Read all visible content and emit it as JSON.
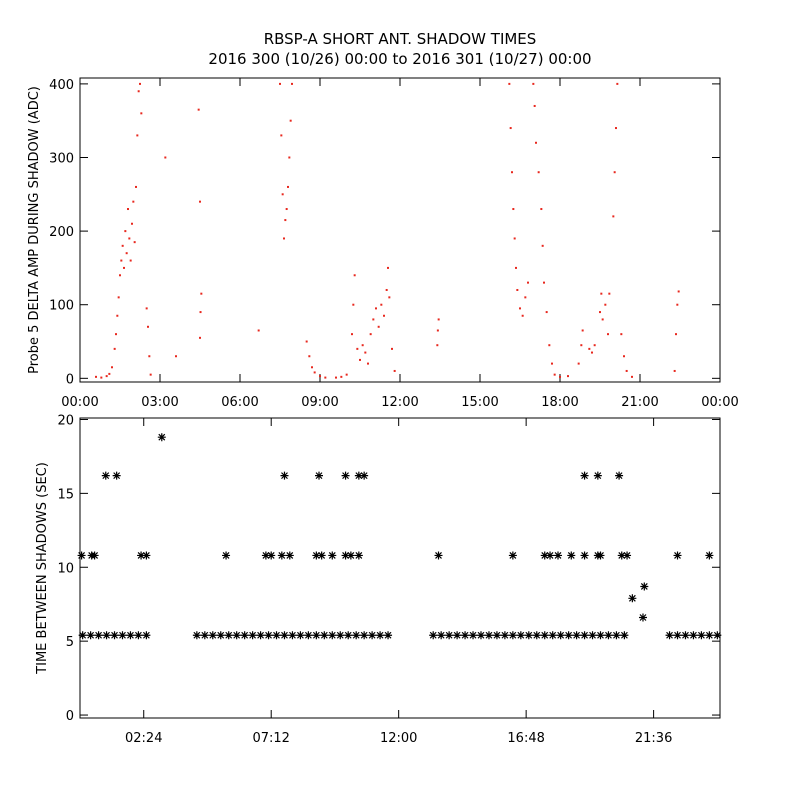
{
  "chart_data": [
    {
      "type": "scatter",
      "title": "RBSP-A SHORT ANT. SHADOW TIMES",
      "subtitle": "2016 300 (10/26) 00:00 to 2016 301 (10/27) 00:00",
      "y_label": "Probe 5 DELTA AMP DURING SHADOW (ADC)",
      "marker": "dot",
      "xlim": [
        0,
        24
      ],
      "ylim": [
        -5,
        408
      ],
      "xticks": [
        {
          "value": 0,
          "label": "00:00"
        },
        {
          "value": 3,
          "label": "03:00"
        },
        {
          "value": 6,
          "label": "06:00"
        },
        {
          "value": 9,
          "label": "09:00"
        },
        {
          "value": 12,
          "label": "12:00"
        },
        {
          "value": 15,
          "label": "15:00"
        },
        {
          "value": 18,
          "label": "18:00"
        },
        {
          "value": 21,
          "label": "21:00"
        },
        {
          "value": 24,
          "label": "00:00"
        }
      ],
      "yticks": [
        0,
        100,
        200,
        300,
        400
      ],
      "series": [
        {
          "color": "#e8281e",
          "x": [
            0.6,
            0.8,
            1.0,
            1.1,
            1.2,
            1.3,
            1.35,
            1.4,
            1.45,
            1.5,
            1.55,
            1.6,
            1.65,
            1.7,
            1.75,
            1.8,
            1.85,
            1.9,
            1.95,
            2.0,
            2.05,
            2.1,
            2.15,
            2.2,
            2.25,
            2.3,
            2.5,
            2.55,
            2.6,
            2.65,
            3.2,
            3.6,
            4.5,
            4.52,
            4.55,
            4.5,
            4.45,
            6.7,
            7.5,
            7.55,
            7.6,
            7.65,
            7.7,
            7.75,
            7.8,
            7.85,
            7.9,
            7.95,
            8.5,
            8.6,
            8.7,
            8.8,
            9.0,
            9.2,
            9.6,
            9.8,
            10.0,
            10.2,
            10.25,
            10.3,
            10.4,
            10.5,
            10.6,
            10.7,
            10.8,
            10.9,
            11.0,
            11.1,
            11.2,
            11.3,
            11.4,
            11.5,
            11.55,
            11.6,
            11.7,
            11.8,
            13.4,
            13.42,
            13.45,
            16.1,
            16.15,
            16.2,
            16.25,
            16.3,
            16.35,
            16.4,
            16.5,
            16.6,
            16.7,
            16.8,
            17.0,
            17.05,
            17.1,
            17.2,
            17.3,
            17.35,
            17.4,
            17.5,
            17.6,
            17.7,
            17.8,
            18.0,
            18.3,
            18.7,
            18.8,
            18.85,
            19.1,
            19.2,
            19.3,
            19.5,
            19.55,
            19.6,
            19.7,
            19.8,
            19.85,
            20.0,
            20.05,
            20.1,
            20.15,
            20.3,
            20.4,
            20.5,
            20.7,
            22.3,
            22.35,
            22.4,
            22.45
          ],
          "values": [
            2,
            1,
            3,
            6,
            15,
            40,
            60,
            85,
            110,
            140,
            160,
            180,
            150,
            200,
            170,
            230,
            190,
            160,
            210,
            240,
            185,
            260,
            330,
            390,
            400,
            360,
            95,
            70,
            30,
            5,
            300,
            30,
            55,
            90,
            115,
            240,
            365,
            65,
            400,
            330,
            250,
            190,
            215,
            230,
            260,
            300,
            350,
            400,
            50,
            30,
            15,
            8,
            3,
            1,
            1,
            2,
            5,
            60,
            100,
            140,
            40,
            25,
            45,
            35,
            20,
            60,
            80,
            95,
            70,
            100,
            85,
            120,
            150,
            110,
            40,
            10,
            45,
            65,
            80,
            400,
            340,
            280,
            230,
            190,
            150,
            120,
            95,
            85,
            110,
            130,
            400,
            370,
            320,
            280,
            230,
            180,
            130,
            90,
            45,
            20,
            5,
            2,
            3,
            20,
            45,
            65,
            40,
            35,
            45,
            90,
            115,
            80,
            100,
            60,
            115,
            220,
            280,
            340,
            400,
            60,
            30,
            10,
            2,
            10,
            60,
            100,
            118
          ]
        }
      ]
    },
    {
      "type": "scatter",
      "y_label": "TIME BETWEEN SHADOWS (SEC)",
      "marker": "asterisk",
      "xlim": [
        0,
        24.1
      ],
      "ylim": [
        -0.2,
        20.1
      ],
      "xticks": [
        {
          "value": 2.4,
          "label": "02:24"
        },
        {
          "value": 7.2,
          "label": "07:12"
        },
        {
          "value": 12,
          "label": "12:00"
        },
        {
          "value": 16.8,
          "label": "16:48"
        },
        {
          "value": 21.6,
          "label": "21:36"
        }
      ],
      "yticks": [
        0,
        5,
        10,
        15,
        20
      ],
      "series": [
        {
          "color": "#000000",
          "x": [
            0.1,
            0.4,
            0.7,
            1.0,
            1.3,
            1.6,
            1.9,
            2.2,
            2.5,
            4.4,
            4.7,
            5.0,
            5.3,
            5.6,
            5.9,
            6.2,
            6.5,
            6.8,
            7.1,
            7.4,
            7.7,
            8.0,
            8.3,
            8.6,
            8.9,
            9.2,
            9.5,
            9.8,
            10.1,
            10.4,
            10.7,
            11.0,
            11.3,
            11.6,
            13.3,
            13.6,
            13.9,
            14.2,
            14.5,
            14.8,
            15.1,
            15.4,
            15.7,
            16.0,
            16.3,
            16.6,
            16.9,
            17.2,
            17.5,
            17.8,
            18.1,
            18.4,
            18.7,
            19.0,
            19.3,
            19.6,
            19.9,
            20.2,
            20.5,
            22.2,
            22.5,
            22.8,
            23.1,
            23.4,
            23.7,
            24.0,
            0.06,
            0.44,
            0.55,
            2.3,
            2.5,
            5.5,
            7.0,
            7.2,
            7.6,
            7.9,
            8.9,
            9.1,
            9.5,
            10.0,
            10.2,
            10.5,
            13.5,
            16.3,
            17.5,
            17.7,
            18.0,
            18.5,
            19.0,
            19.5,
            19.6,
            20.4,
            20.6,
            22.5,
            23.7,
            0.97,
            1.38,
            7.7,
            9.0,
            10.0,
            10.5,
            10.7,
            19.0,
            19.5,
            20.3,
            3.08,
            20.8,
            21.25,
            21.2
          ],
          "values": [
            5.4,
            5.4,
            5.4,
            5.4,
            5.4,
            5.4,
            5.4,
            5.4,
            5.4,
            5.4,
            5.4,
            5.4,
            5.4,
            5.4,
            5.4,
            5.4,
            5.4,
            5.4,
            5.4,
            5.4,
            5.4,
            5.4,
            5.4,
            5.4,
            5.4,
            5.4,
            5.4,
            5.4,
            5.4,
            5.4,
            5.4,
            5.4,
            5.4,
            5.4,
            5.4,
            5.4,
            5.4,
            5.4,
            5.4,
            5.4,
            5.4,
            5.4,
            5.4,
            5.4,
            5.4,
            5.4,
            5.4,
            5.4,
            5.4,
            5.4,
            5.4,
            5.4,
            5.4,
            5.4,
            5.4,
            5.4,
            5.4,
            5.4,
            5.4,
            5.4,
            5.4,
            5.4,
            5.4,
            5.4,
            5.4,
            5.4,
            10.8,
            10.8,
            10.8,
            10.8,
            10.8,
            10.8,
            10.8,
            10.8,
            10.8,
            10.8,
            10.8,
            10.8,
            10.8,
            10.8,
            10.8,
            10.8,
            10.8,
            10.8,
            10.8,
            10.8,
            10.8,
            10.8,
            10.8,
            10.8,
            10.8,
            10.8,
            10.8,
            10.8,
            10.8,
            16.2,
            16.2,
            16.2,
            16.2,
            16.2,
            16.2,
            16.2,
            16.2,
            16.2,
            16.2,
            18.8,
            7.9,
            8.7,
            6.6
          ]
        }
      ]
    }
  ]
}
